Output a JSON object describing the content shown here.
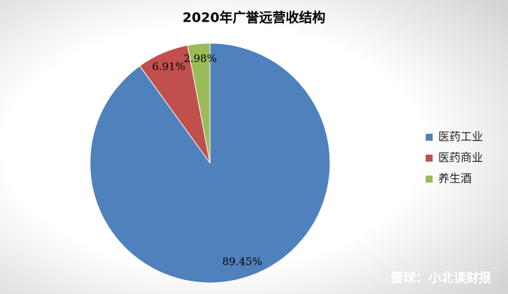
{
  "chart_data": {
    "type": "pie",
    "title": "2020年广誉远营收结构",
    "categories": [
      "医药工业",
      "医药商业",
      "养生酒"
    ],
    "values": [
      89.45,
      6.91,
      2.98
    ],
    "value_labels": [
      "89.45%",
      "6.91%",
      "2.98%"
    ],
    "colors": [
      "#4f81bd",
      "#c0504d",
      "#9bbb59"
    ],
    "legend": "right",
    "watermark": "雪球：小北读财报"
  }
}
